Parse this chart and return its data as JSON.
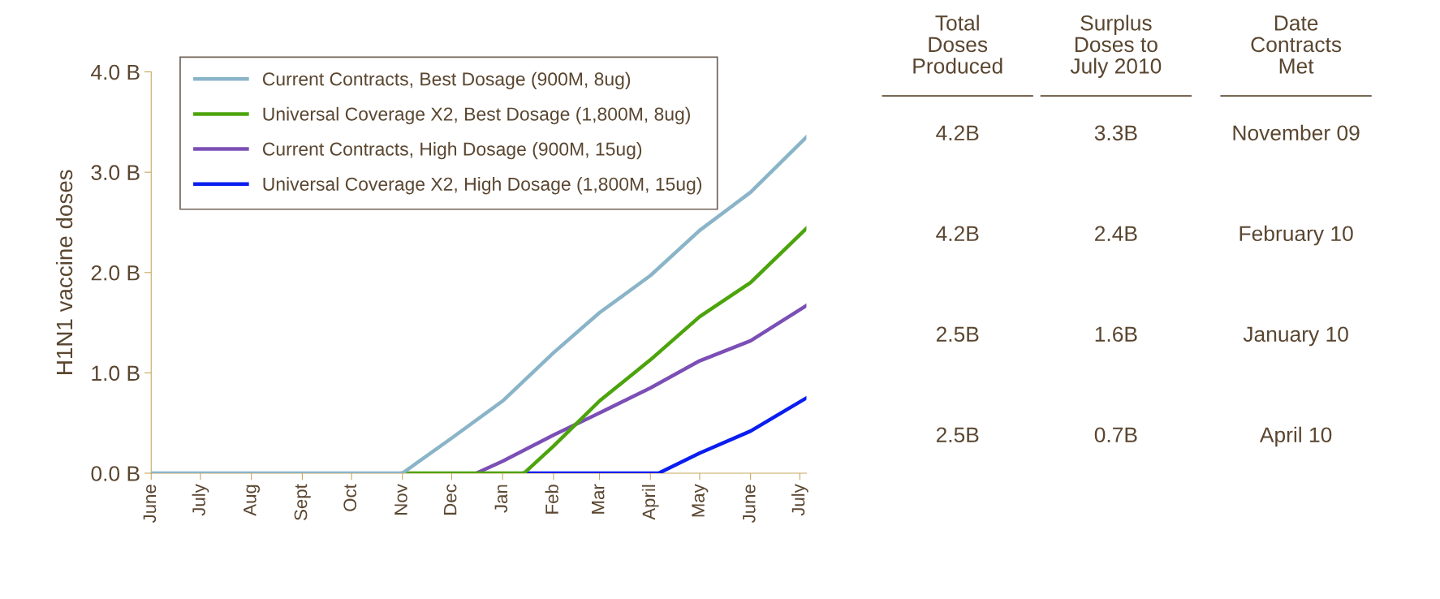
{
  "chart_data": {
    "type": "line",
    "ylabel": "H1N1 vaccine doses",
    "ylim": [
      0,
      4
    ],
    "yticks": [
      {
        "value": 0,
        "label": "0.0 B"
      },
      {
        "value": 1,
        "label": "1.0 B"
      },
      {
        "value": 2,
        "label": "2.0 B"
      },
      {
        "value": 3,
        "label": "3.0 B"
      },
      {
        "value": 4,
        "label": "4.0 B"
      }
    ],
    "xlim": [
      "2009-06-01",
      "2010-07-05"
    ],
    "xticks": [
      {
        "value": "2009-06-01",
        "label": "June"
      },
      {
        "value": "2009-07-01",
        "label": "July"
      },
      {
        "value": "2009-08-01",
        "label": "Aug"
      },
      {
        "value": "2009-09-01",
        "label": "Sept"
      },
      {
        "value": "2009-10-01",
        "label": "Oct"
      },
      {
        "value": "2009-11-01",
        "label": "Nov"
      },
      {
        "value": "2009-12-01",
        "label": "Dec"
      },
      {
        "value": "2010-01-01",
        "label": "Jan"
      },
      {
        "value": "2010-02-01",
        "label": "Feb"
      },
      {
        "value": "2010-03-01",
        "label": "Mar"
      },
      {
        "value": "2010-04-01",
        "label": "April"
      },
      {
        "value": "2010-05-01",
        "label": "May"
      },
      {
        "value": "2010-06-01",
        "label": "June"
      },
      {
        "value": "2010-07-01",
        "label": "July"
      }
    ],
    "grid": false,
    "legend": "top left",
    "marker": "none",
    "line_style": "solid",
    "series": [
      {
        "name": "Current Contracts, Best Dosage (900M, 8ug)",
        "color": "#8ab4c8",
        "x": [
          "2009-06-01",
          "2009-11-01",
          "2009-12-01",
          "2010-01-01",
          "2010-02-01",
          "2010-03-01",
          "2010-04-01",
          "2010-05-01",
          "2010-06-01",
          "2010-07-05"
        ],
        "values": [
          0,
          0,
          0.35,
          0.72,
          1.2,
          1.6,
          1.97,
          2.42,
          2.8,
          3.35
        ]
      },
      {
        "name": "Universal Coverage X2, Best Dosage (1,800M, 8ug)",
        "color": "#4ca40c",
        "x": [
          "2009-11-01",
          "2010-01-14",
          "2010-02-01",
          "2010-03-01",
          "2010-04-01",
          "2010-05-01",
          "2010-06-01",
          "2010-07-05"
        ],
        "values": [
          0,
          0,
          0.27,
          0.72,
          1.13,
          1.56,
          1.9,
          2.44
        ]
      },
      {
        "name": "Current Contracts, High Dosage (900M, 15ug)",
        "color": "#7b4fb5",
        "x": [
          "2009-12-16",
          "2010-01-01",
          "2010-02-01",
          "2010-03-01",
          "2010-04-01",
          "2010-05-01",
          "2010-06-01",
          "2010-07-05"
        ],
        "values": [
          0,
          0.12,
          0.38,
          0.6,
          0.85,
          1.12,
          1.32,
          1.67
        ]
      },
      {
        "name": "Universal Coverage X2, High Dosage (1,800M, 15ug)",
        "color": "#0a1ef0",
        "x": [
          "2010-01-14",
          "2010-04-06",
          "2010-05-01",
          "2010-06-01",
          "2010-07-05"
        ],
        "values": [
          0,
          0,
          0.2,
          0.42,
          0.75
        ]
      }
    ],
    "annotations": [
      "Total\nDoses\nProduced",
      "Surplus\nDoses to\nJuly 2010",
      "Date\nContracts\nMet",
      "4.2B",
      "3.3B",
      "November 09",
      "4.2B",
      "2.4B",
      "February 10",
      "2.5B",
      "1.6B",
      "January 10",
      "2.5B",
      "0.7B",
      "April 10"
    ]
  }
}
